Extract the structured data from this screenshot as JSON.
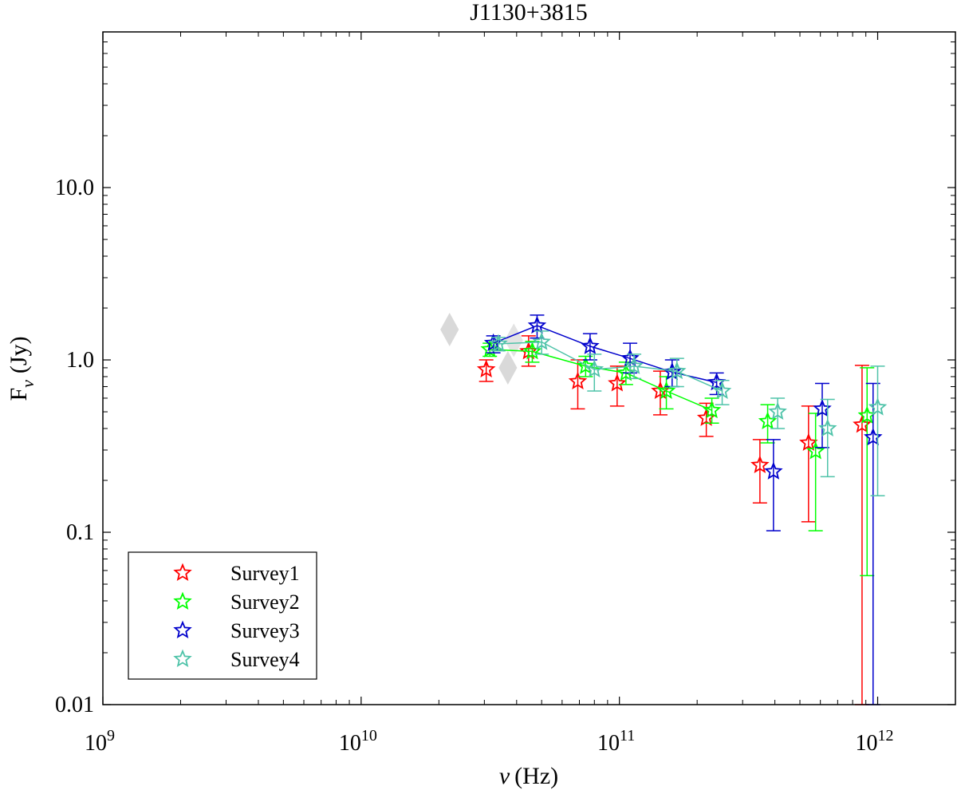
{
  "chart_data": {
    "type": "scatter",
    "title": "J1130+3815",
    "xlabel_symbol": "ν",
    "xlabel_unit": "(Hz)",
    "ylabel_main": "F",
    "ylabel_sub": "ν",
    "ylabel_unit": "(Jy)",
    "xscale": "log",
    "yscale": "log",
    "xlim": [
      1000000000.0,
      2000000000000.0
    ],
    "ylim": [
      0.01,
      80
    ],
    "x_ticks": [
      {
        "value": 1000000000.0,
        "base": "10",
        "exp": "9"
      },
      {
        "value": 10000000000.0,
        "base": "10",
        "exp": "10"
      },
      {
        "value": 100000000000.0,
        "base": "10",
        "exp": "11"
      },
      {
        "value": 1000000000000.0,
        "base": "10",
        "exp": "12"
      }
    ],
    "y_ticks": [
      {
        "value": 0.01,
        "label": "0.01"
      },
      {
        "value": 0.1,
        "label": "0.1"
      },
      {
        "value": 1,
        "label": "1.0"
      },
      {
        "value": 10,
        "label": "10.0"
      }
    ],
    "legend_position": "bottom-left",
    "background_points": [
      {
        "x": 22000000000.0,
        "y": 1.5,
        "color": "#d9d9d9"
      },
      {
        "x": 37000000000.0,
        "y": 0.9,
        "color": "#d9d9d9"
      },
      {
        "x": 39000000000.0,
        "y": 1.3,
        "color": "#e3e3e3"
      }
    ],
    "series": [
      {
        "name": "Survey1",
        "color": "#ff0000",
        "connected": false,
        "points": [
          {
            "x": 30500000000.0,
            "y": 0.88,
            "lo": 0.75,
            "hi": 1.0
          },
          {
            "x": 44500000000.0,
            "y": 1.12,
            "lo": 0.92,
            "hi": 1.38
          },
          {
            "x": 69000000000.0,
            "y": 0.75,
            "lo": 0.52,
            "hi": 1.0
          },
          {
            "x": 98000000000.0,
            "y": 0.73,
            "lo": 0.54,
            "hi": 0.92
          },
          {
            "x": 144000000000.0,
            "y": 0.66,
            "lo": 0.48,
            "hi": 0.86
          },
          {
            "x": 217000000000.0,
            "y": 0.46,
            "lo": 0.36,
            "hi": 0.56
          },
          {
            "x": 350000000000.0,
            "y": 0.245,
            "lo": 0.148,
            "hi": 0.345
          },
          {
            "x": 540000000000.0,
            "y": 0.33,
            "lo": 0.115,
            "hi": 0.54
          },
          {
            "x": 870000000000.0,
            "y": 0.42,
            "lo": 0.01,
            "hi": 0.93
          }
        ]
      },
      {
        "name": "Survey2",
        "color": "#00ff00",
        "connected": true,
        "points": [
          {
            "x": 31500000000.0,
            "y": 1.15,
            "lo": 1.05,
            "hi": 1.25
          },
          {
            "x": 46000000000.0,
            "y": 1.12,
            "lo": 0.97,
            "hi": 1.28
          },
          {
            "x": 74000000000.0,
            "y": 0.92,
            "lo": 0.8,
            "hi": 1.05
          },
          {
            "x": 106000000000.0,
            "y": 0.84,
            "lo": 0.72,
            "hi": 0.97
          },
          {
            "x": 152000000000.0,
            "y": 0.66,
            "lo": 0.52,
            "hi": 0.8
          },
          {
            "x": 228000000000.0,
            "y": 0.51,
            "lo": 0.43,
            "hi": 0.6
          },
          {
            "x": 375000000000.0,
            "y": 0.44,
            "lo": 0.33,
            "hi": 0.55
          },
          {
            "x": 575000000000.0,
            "y": 0.295,
            "lo": 0.102,
            "hi": 0.49
          },
          {
            "x": 910000000000.0,
            "y": 0.475,
            "lo": 0.056,
            "hi": 0.9
          }
        ]
      },
      {
        "name": "Survey3",
        "color": "#0000cc",
        "connected": true,
        "points": [
          {
            "x": 32500000000.0,
            "y": 1.25,
            "lo": 1.1,
            "hi": 1.38
          },
          {
            "x": 48000000000.0,
            "y": 1.58,
            "lo": 1.34,
            "hi": 1.82
          },
          {
            "x": 77000000000.0,
            "y": 1.2,
            "lo": 1.0,
            "hi": 1.42
          },
          {
            "x": 110000000000.0,
            "y": 1.02,
            "lo": 0.84,
            "hi": 1.25
          },
          {
            "x": 160000000000.0,
            "y": 0.85,
            "lo": 0.7,
            "hi": 1.0
          },
          {
            "x": 238000000000.0,
            "y": 0.74,
            "lo": 0.63,
            "hi": 0.84
          },
          {
            "x": 395000000000.0,
            "y": 0.225,
            "lo": 0.102,
            "hi": 0.345
          },
          {
            "x": 610000000000.0,
            "y": 0.52,
            "lo": 0.31,
            "hi": 0.73
          },
          {
            "x": 960000000000.0,
            "y": 0.355,
            "lo": 0.01,
            "hi": 0.73
          }
        ]
      },
      {
        "name": "Survey4",
        "color": "#4fc3a9",
        "connected": true,
        "points": [
          {
            "x": 34000000000.0,
            "y": 1.24,
            "lo": 1.13,
            "hi": 1.35
          },
          {
            "x": 50000000000.0,
            "y": 1.27,
            "lo": 1.08,
            "hi": 1.47
          },
          {
            "x": 80000000000.0,
            "y": 0.88,
            "lo": 0.66,
            "hi": 1.08
          },
          {
            "x": 114000000000.0,
            "y": 0.92,
            "lo": 0.78,
            "hi": 1.08
          },
          {
            "x": 167000000000.0,
            "y": 0.86,
            "lo": 0.7,
            "hi": 1.02
          },
          {
            "x": 250000000000.0,
            "y": 0.66,
            "lo": 0.55,
            "hi": 0.76
          },
          {
            "x": 410000000000.0,
            "y": 0.5,
            "lo": 0.4,
            "hi": 0.6
          },
          {
            "x": 640000000000.0,
            "y": 0.4,
            "lo": 0.21,
            "hi": 0.59
          },
          {
            "x": 1000000000000.0,
            "y": 0.53,
            "lo": 0.163,
            "hi": 0.92
          }
        ]
      }
    ]
  }
}
